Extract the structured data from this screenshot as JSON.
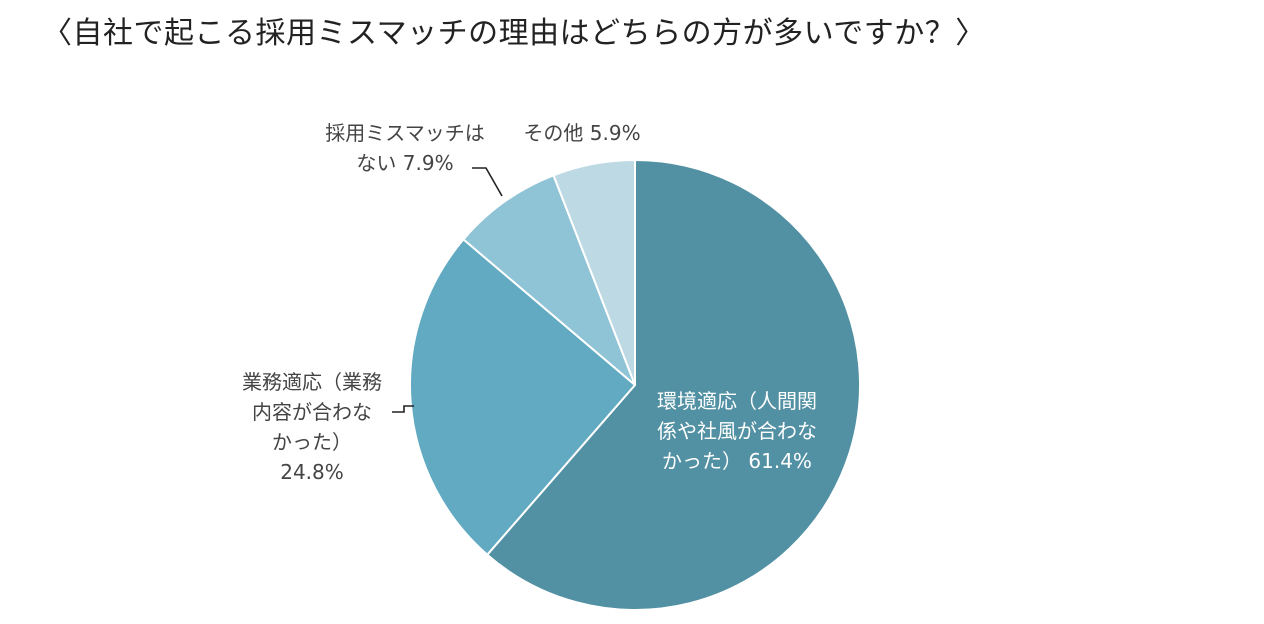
{
  "title": "〈自社で起こる採用ミスマッチの理由はどちらの方が多いですか？〉",
  "chart_data": {
    "type": "pie",
    "title": "〈自社で起こる採用ミスマッチの理由はどちらの方が多いですか？〉",
    "unit": "%",
    "slices": [
      {
        "label": "環境適応（人間関係や社風が合わなかった）",
        "value": 61.4,
        "color": "#5290a3",
        "display_lines": [
          "環境適応（人間関",
          "係や社風が合わな",
          "かった） 61.4%"
        ]
      },
      {
        "label": "業務適応（業務内容が合わなかった）",
        "value": 24.8,
        "color": "#61aac2",
        "display_lines": [
          "業務適応（業務",
          "内容が合わな",
          "かった）",
          "24.8%"
        ]
      },
      {
        "label": "採用ミスマッチはない",
        "value": 7.9,
        "color": "#8fc3d6",
        "display_lines": [
          "採用ミスマッチは",
          "ない 7.9%"
        ]
      },
      {
        "label": "その他",
        "value": 5.9,
        "color": "#bcd9e4",
        "display_lines": [
          "その他 5.9%"
        ]
      }
    ],
    "start_angle": "12 o'clock",
    "direction": "clockwise",
    "legend": "none"
  }
}
